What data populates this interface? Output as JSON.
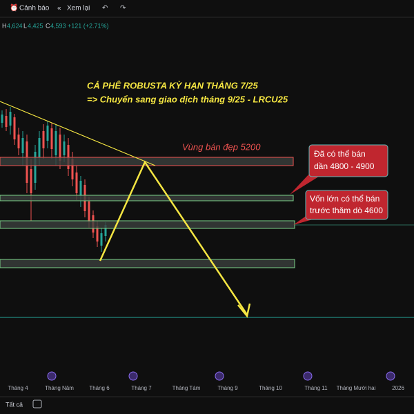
{
  "toolbar": {
    "alert": "Cảnh báo",
    "replay": "Xem lại"
  },
  "ohlc": {
    "h_label": "H",
    "h": "4,624",
    "l_label": "L",
    "l": "4,425",
    "c_label": "C",
    "c": "4,593",
    "change": "+121 (+2.71%)"
  },
  "annotations": {
    "title": "CẢ PHÊ ROBUSTA KỲ HẠN THÁNG 7/25",
    "subtitle": "=> Chuyển sang giao dịch tháng 9/25 - LRCU25",
    "zone_label": "Vùng bán đẹp 5200",
    "callouts": [
      [
        "Đã có thể bán",
        "dần 4800 - 4900"
      ],
      [
        "Vốn lớn có thể bán",
        "trước thăm dò 4600"
      ]
    ]
  },
  "x_axis": [
    "Tháng 4",
    "Tháng Năm",
    "Tháng 6",
    "Tháng 7",
    "Tháng Tám",
    "Tháng 9",
    "Tháng 10",
    "Tháng 11",
    "Tháng Mười hai",
    "2026"
  ],
  "footer": {
    "range": "Tất cả"
  }
}
